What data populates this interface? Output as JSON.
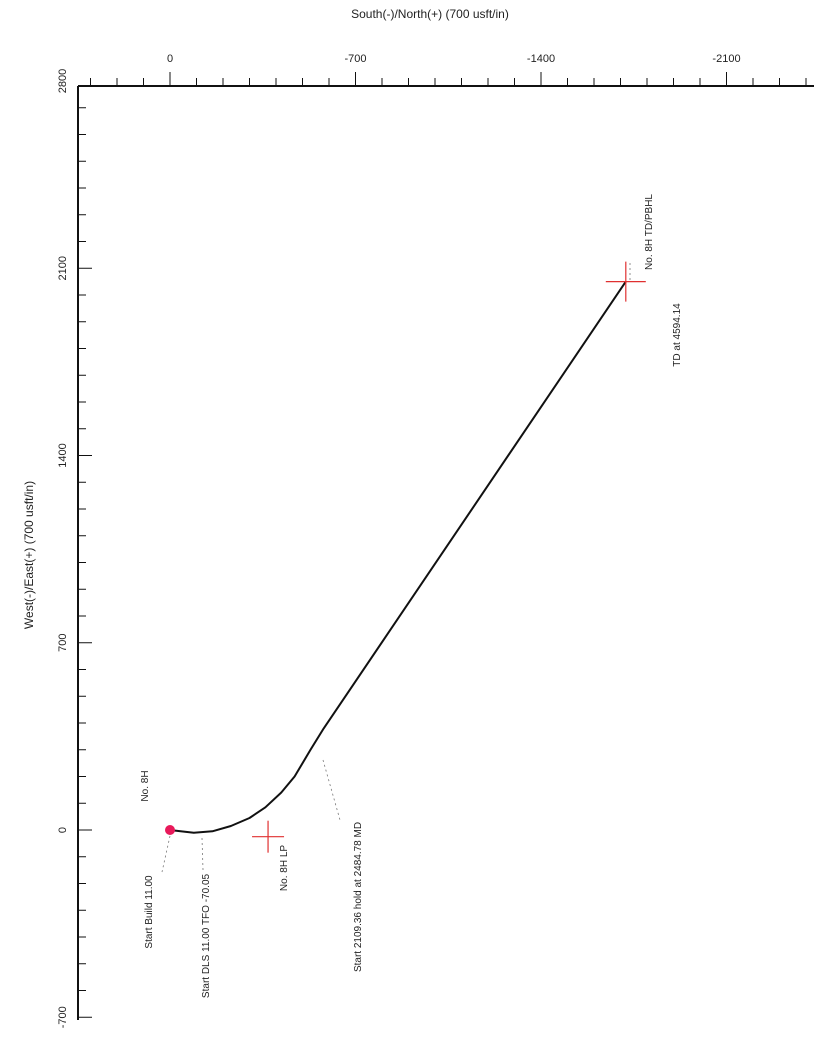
{
  "chart_data": {
    "type": "line",
    "title": "",
    "top_axis": {
      "label": "South(-)/North(+) (700 usft/in)",
      "ticks": [
        0,
        -700,
        -1400,
        -2100
      ],
      "tick_labels": [
        "0",
        "-700",
        "-1400",
        "-2100"
      ]
    },
    "left_axis": {
      "label": "West(-)/East(+) (700 usft/in)",
      "ticks": [
        2800,
        2100,
        1400,
        700,
        0,
        -700
      ],
      "tick_labels": [
        "2800",
        "2100",
        "1400",
        "700",
        "0",
        "-700"
      ]
    },
    "series": [
      {
        "name": "",
        "points": [
          [
            0,
            0
          ],
          [
            -40,
            -5
          ],
          [
            -90,
            -10
          ],
          [
            -160,
            -5
          ],
          [
            -230,
            15
          ],
          [
            -300,
            45
          ],
          [
            -360,
            85
          ],
          [
            -420,
            140
          ],
          [
            -470,
            200
          ],
          [
            -530,
            300
          ],
          [
            -580,
            380
          ],
          [
            -1720,
            2050
          ]
        ]
      }
    ],
    "markers": {
      "surface": {
        "x": 0,
        "y": 0,
        "label": "No. 8H",
        "color": "#e8195a"
      },
      "lp": {
        "x": -370,
        "y": -25,
        "label": "No. 8H LP",
        "color": "#e03030"
      },
      "td": {
        "x": -1720,
        "y": 2050,
        "label": "No. 8H TD/PBHL",
        "color": "#e03030"
      }
    },
    "annotations": [
      {
        "text": "Start Build 11.00",
        "x": -20,
        "y": -40
      },
      {
        "text": "Start DLS 11.00 TFO -70.05",
        "x": -130,
        "y": -40
      },
      {
        "text": "Start 2109.36 hold at 2484.78 MD",
        "x": -530,
        "y": 280
      },
      {
        "text": "TD at 4594.14",
        "x": -1740,
        "y": 2050
      }
    ]
  }
}
